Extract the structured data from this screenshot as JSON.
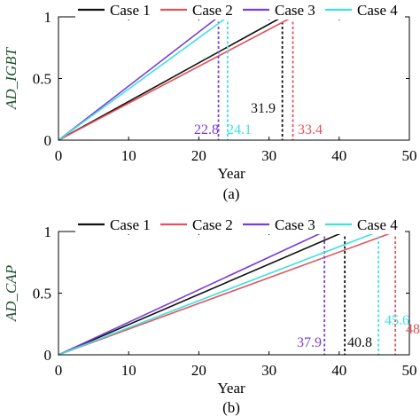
{
  "colors": {
    "case1": "#111111",
    "case2": "#e0545c",
    "case3": "#7a3fd6",
    "case4": "#3fe0e0",
    "ylabel": "#1f4d2e"
  },
  "chart_data": [
    {
      "panel": "(a)",
      "type": "line",
      "xlabel": "Year",
      "ylabel": "AD_IGBT",
      "xlim": [
        0,
        50
      ],
      "ylim": [
        0,
        1
      ],
      "xticks": [
        "0",
        "10",
        "20",
        "30",
        "40",
        "50"
      ],
      "yticks": [
        "0",
        "0.5",
        "1"
      ],
      "legend": "top",
      "series": [
        {
          "name": "Case 1",
          "color_key": "case1",
          "x": [
            0,
            31.9
          ],
          "y": [
            0,
            1
          ],
          "end": 31.9,
          "label": "31.9"
        },
        {
          "name": "Case 2",
          "color_key": "case2",
          "x": [
            0,
            33.4
          ],
          "y": [
            0,
            1
          ],
          "end": 33.4,
          "label": "33.4"
        },
        {
          "name": "Case 3",
          "color_key": "case3",
          "x": [
            0,
            22.8
          ],
          "y": [
            0,
            1
          ],
          "end": 22.8,
          "label": "22.8"
        },
        {
          "name": "Case 4",
          "color_key": "case4",
          "x": [
            0,
            24.1
          ],
          "y": [
            0,
            1
          ],
          "end": 24.1,
          "label": "24.1"
        }
      ]
    },
    {
      "panel": "(b)",
      "type": "line",
      "xlabel": "Year",
      "ylabel": "AD_CAP",
      "xlim": [
        0,
        50
      ],
      "ylim": [
        0,
        1
      ],
      "xticks": [
        "0",
        "10",
        "20",
        "30",
        "40",
        "50"
      ],
      "yticks": [
        "0",
        "0.5",
        "1"
      ],
      "legend": "top",
      "series": [
        {
          "name": "Case 1",
          "color_key": "case1",
          "x": [
            0,
            40.8
          ],
          "y": [
            0,
            1
          ],
          "end": 40.8,
          "label": "40.8"
        },
        {
          "name": "Case 2",
          "color_key": "case2",
          "x": [
            0,
            48
          ],
          "y": [
            0,
            1
          ],
          "end": 48,
          "label": "48"
        },
        {
          "name": "Case 3",
          "color_key": "case3",
          "x": [
            0,
            37.9
          ],
          "y": [
            0,
            1
          ],
          "end": 37.9,
          "label": "37.9"
        },
        {
          "name": "Case 4",
          "color_key": "case4",
          "x": [
            0,
            45.6
          ],
          "y": [
            0,
            1
          ],
          "end": 45.6,
          "label": "45.6"
        }
      ]
    }
  ]
}
